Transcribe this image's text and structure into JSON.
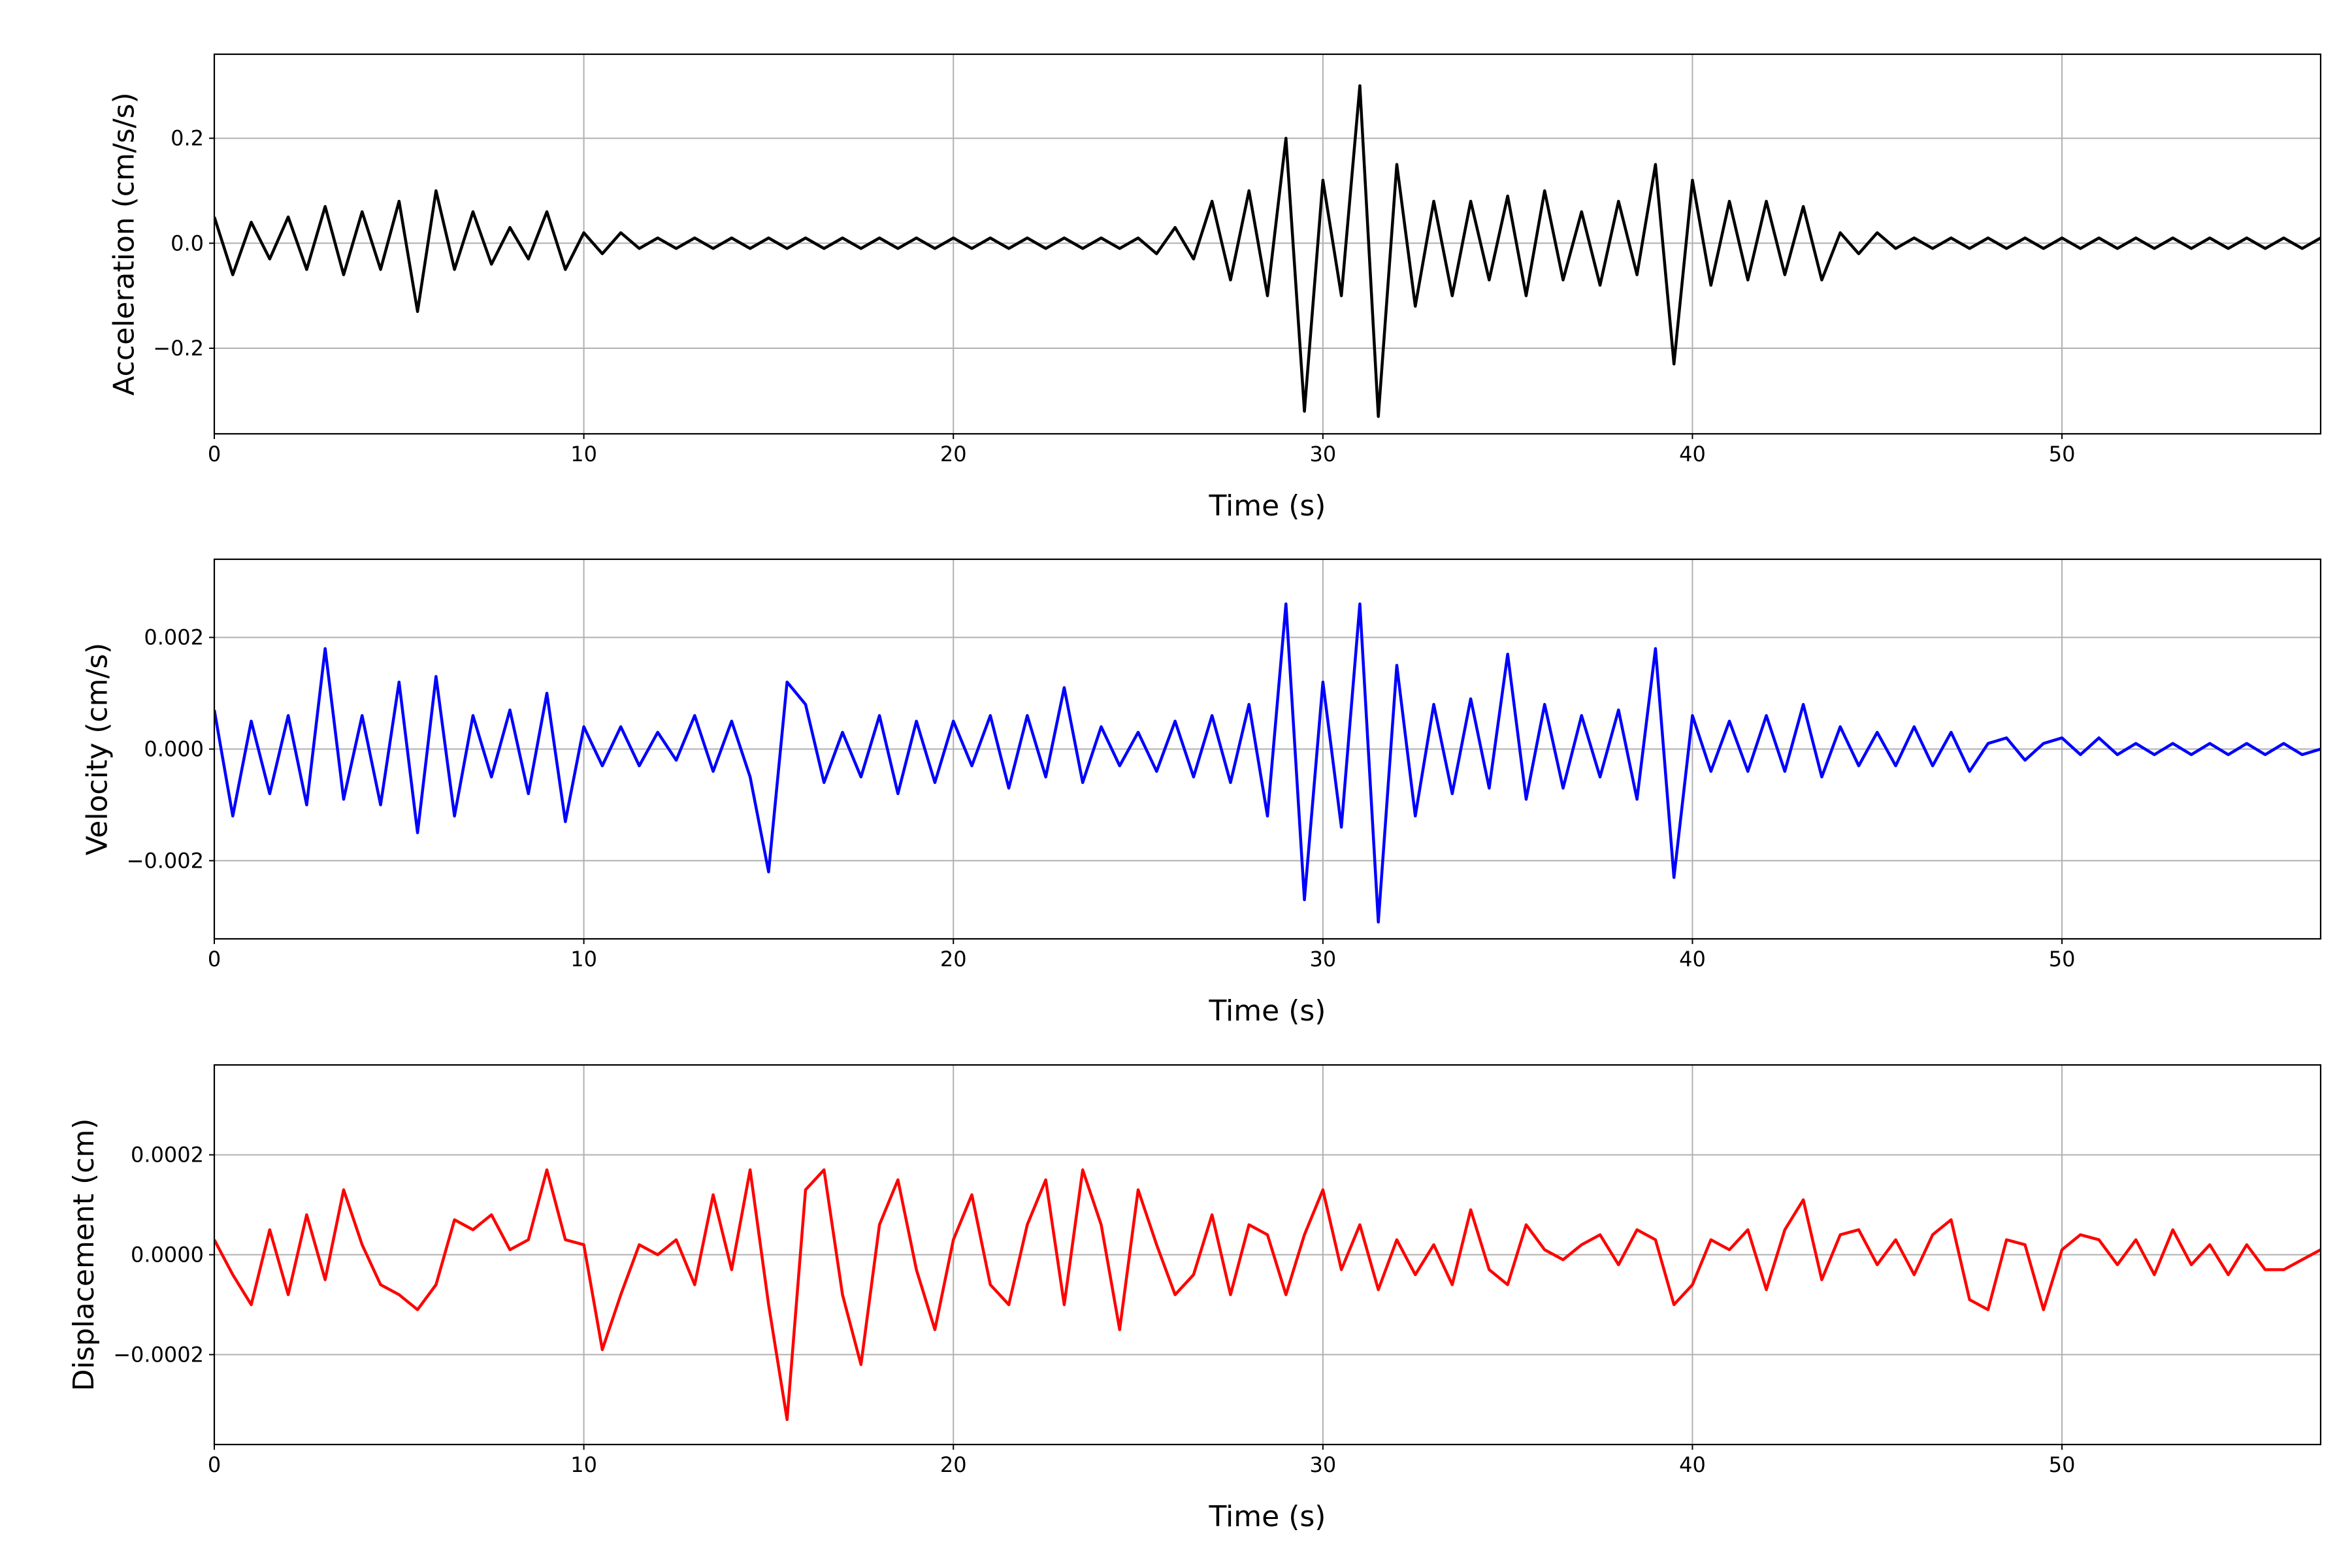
{
  "chart_data": [
    {
      "type": "line",
      "xlabel": "Time (s)",
      "ylabel": "Acceleration (cm/s/s)",
      "color": "#000000",
      "xlim": [
        0,
        57.0
      ],
      "xticks": [
        0,
        10,
        20,
        30,
        40,
        50
      ],
      "ylim": [
        -0.363,
        0.36
      ],
      "yticks": [
        {
          "value": -0.2,
          "label": "−0.2"
        },
        {
          "value": 0,
          "label": "0.0"
        },
        0.2
      ],
      "grid": true,
      "x": [
        0,
        0.5,
        1,
        1.5,
        2,
        2.5,
        3,
        3.5,
        4,
        4.5,
        5,
        5.5,
        6,
        6.5,
        7,
        7.5,
        8,
        8.5,
        9,
        9.5,
        10,
        10.5,
        11,
        11.5,
        12,
        12.5,
        13,
        13.5,
        14,
        14.5,
        15,
        15.5,
        16,
        16.5,
        17,
        17.5,
        18,
        18.5,
        19,
        19.5,
        20,
        20.5,
        21,
        21.5,
        22,
        22.5,
        23,
        23.5,
        24,
        24.5,
        25,
        25.5,
        26,
        26.5,
        27,
        27.5,
        28,
        28.5,
        29,
        29.5,
        30,
        30.5,
        31,
        31.5,
        32,
        32.5,
        33,
        33.5,
        34,
        34.5,
        35,
        35.5,
        36,
        36.5,
        37,
        37.5,
        38,
        38.5,
        39,
        39.5,
        40,
        40.5,
        41,
        41.5,
        42,
        42.5,
        43,
        43.5,
        44,
        44.5,
        45,
        45.5,
        46,
        46.5,
        47,
        47.5,
        48,
        48.5,
        49,
        49.5,
        50,
        50.5,
        51,
        51.5,
        52,
        52.5,
        53,
        53.5,
        54,
        54.5,
        55,
        55.5,
        56,
        56.5,
        57
      ],
      "values": [
        0.05,
        -0.06,
        0.04,
        -0.03,
        0.05,
        -0.05,
        0.07,
        -0.06,
        0.06,
        -0.05,
        0.08,
        -0.13,
        0.1,
        -0.05,
        0.06,
        -0.04,
        0.03,
        -0.03,
        0.06,
        -0.05,
        0.02,
        -0.02,
        0.02,
        -0.01,
        0.01,
        -0.01,
        0.01,
        -0.01,
        0.01,
        -0.01,
        0.01,
        -0.01,
        0.01,
        -0.01,
        0.01,
        -0.01,
        0.01,
        -0.01,
        0.01,
        -0.01,
        0.01,
        -0.01,
        0.01,
        -0.01,
        0.01,
        -0.01,
        0.01,
        -0.01,
        0.01,
        -0.01,
        0.01,
        -0.02,
        0.03,
        -0.03,
        0.08,
        -0.07,
        0.1,
        -0.1,
        0.2,
        -0.32,
        0.12,
        -0.1,
        0.3,
        -0.33,
        0.15,
        -0.12,
        0.08,
        -0.1,
        0.08,
        -0.07,
        0.09,
        -0.1,
        0.1,
        -0.07,
        0.06,
        -0.08,
        0.08,
        -0.06,
        0.15,
        -0.23,
        0.12,
        -0.08,
        0.08,
        -0.07,
        0.08,
        -0.06,
        0.07,
        -0.07,
        0.02,
        -0.02,
        0.02,
        -0.01,
        0.01,
        -0.01,
        0.01,
        -0.01,
        0.01,
        -0.01,
        0.01,
        -0.01,
        0.01,
        -0.01,
        0.01,
        -0.01,
        0.01,
        -0.01,
        0.01,
        -0.01,
        0.01,
        -0.01,
        0.01,
        -0.01,
        0.01,
        -0.01,
        0.01
      ]
    },
    {
      "type": "line",
      "xlabel": "Time (s)",
      "ylabel": "Velocity (cm/s)",
      "color": "#0000ff",
      "xlim": [
        0,
        57.0
      ],
      "xticks": [
        0,
        10,
        20,
        30,
        40,
        50
      ],
      "ylim": [
        -0.0034,
        0.0034
      ],
      "yticks": [
        {
          "value": -0.002,
          "label": "−0.002"
        },
        {
          "value": 0,
          "label": "0.000"
        },
        0.002
      ],
      "grid": true,
      "x": [
        0,
        0.5,
        1,
        1.5,
        2,
        2.5,
        3,
        3.5,
        4,
        4.5,
        5,
        5.5,
        6,
        6.5,
        7,
        7.5,
        8,
        8.5,
        9,
        9.5,
        10,
        10.5,
        11,
        11.5,
        12,
        12.5,
        13,
        13.5,
        14,
        14.5,
        15,
        15.5,
        16,
        16.5,
        17,
        17.5,
        18,
        18.5,
        19,
        19.5,
        20,
        20.5,
        21,
        21.5,
        22,
        22.5,
        23,
        23.5,
        24,
        24.5,
        25,
        25.5,
        26,
        26.5,
        27,
        27.5,
        28,
        28.5,
        29,
        29.5,
        30,
        30.5,
        31,
        31.5,
        32,
        32.5,
        33,
        33.5,
        34,
        34.5,
        35,
        35.5,
        36,
        36.5,
        37,
        37.5,
        38,
        38.5,
        39,
        39.5,
        40,
        40.5,
        41,
        41.5,
        42,
        42.5,
        43,
        43.5,
        44,
        44.5,
        45,
        45.5,
        46,
        46.5,
        47,
        47.5,
        48,
        48.5,
        49,
        49.5,
        50,
        50.5,
        51,
        51.5,
        52,
        52.5,
        53,
        53.5,
        54,
        54.5,
        55,
        55.5,
        56,
        56.5,
        57
      ],
      "values": [
        0.0007,
        -0.0012,
        0.0005,
        -0.0008,
        0.0006,
        -0.001,
        0.0018,
        -0.0009,
        0.0006,
        -0.001,
        0.0012,
        -0.0015,
        0.0013,
        -0.0012,
        0.0006,
        -0.0005,
        0.0007,
        -0.0008,
        0.001,
        -0.0013,
        0.0004,
        -0.0003,
        0.0004,
        -0.0003,
        0.0003,
        -0.0002,
        0.0006,
        -0.0004,
        0.0005,
        -0.0005,
        -0.0022,
        0.0012,
        0.0008,
        -0.0006,
        0.0003,
        -0.0005,
        0.0006,
        -0.0008,
        0.0005,
        -0.0006,
        0.0005,
        -0.0003,
        0.0006,
        -0.0007,
        0.0006,
        -0.0005,
        0.0011,
        -0.0006,
        0.0004,
        -0.0003,
        0.0003,
        -0.0004,
        0.0005,
        -0.0005,
        0.0006,
        -0.0006,
        0.0008,
        -0.0012,
        0.0026,
        -0.0027,
        0.0012,
        -0.0014,
        0.0026,
        -0.0031,
        0.0015,
        -0.0012,
        0.0008,
        -0.0008,
        0.0009,
        -0.0007,
        0.0017,
        -0.0009,
        0.0008,
        -0.0007,
        0.0006,
        -0.0005,
        0.0007,
        -0.0009,
        0.0018,
        -0.0023,
        0.0006,
        -0.0004,
        0.0005,
        -0.0004,
        0.0006,
        -0.0004,
        0.0008,
        -0.0005,
        0.0004,
        -0.0003,
        0.0003,
        -0.0003,
        0.0004,
        -0.0003,
        0.0003,
        -0.0004,
        0.0001,
        0.0002,
        -0.0002,
        0.0001,
        0.0002,
        -0.0001,
        0.0002,
        -0.0001,
        0.0001,
        -0.0001,
        0.0001,
        -0.0001,
        0.0001,
        -0.0001,
        0.0001,
        -0.0001,
        0.0001,
        -0.0001,
        0
      ]
    },
    {
      "type": "line",
      "xlabel": "Time (s)",
      "ylabel": "Displacement (cm)",
      "color": "#ff0000",
      "xlim": [
        0,
        57.0
      ],
      "xticks": [
        0,
        10,
        20,
        30,
        40,
        50
      ],
      "ylim": [
        -0.00038,
        0.00038
      ],
      "yticks": [
        {
          "value": -0.0002,
          "label": "−0.0002"
        },
        {
          "value": 0,
          "label": "0.0000"
        },
        0.0002
      ],
      "grid": true,
      "x": [
        0,
        0.5,
        1,
        1.5,
        2,
        2.5,
        3,
        3.5,
        4,
        4.5,
        5,
        5.5,
        6,
        6.5,
        7,
        7.5,
        8,
        8.5,
        9,
        9.5,
        10,
        10.5,
        11,
        11.5,
        12,
        12.5,
        13,
        13.5,
        14,
        14.5,
        15,
        15.5,
        16,
        16.5,
        17,
        17.5,
        18,
        18.5,
        19,
        19.5,
        20,
        20.5,
        21,
        21.5,
        22,
        22.5,
        23,
        23.5,
        24,
        24.5,
        25,
        25.5,
        26,
        26.5,
        27,
        27.5,
        28,
        28.5,
        29,
        29.5,
        30,
        30.5,
        31,
        31.5,
        32,
        32.5,
        33,
        33.5,
        34,
        34.5,
        35,
        35.5,
        36,
        36.5,
        37,
        37.5,
        38,
        38.5,
        39,
        39.5,
        40,
        40.5,
        41,
        41.5,
        42,
        42.5,
        43,
        43.5,
        44,
        44.5,
        45,
        45.5,
        46,
        46.5,
        47,
        47.5,
        48,
        48.5,
        49,
        49.5,
        50,
        50.5,
        51,
        51.5,
        52,
        52.5,
        53,
        53.5,
        54,
        54.5,
        55,
        55.5,
        56,
        56.5,
        57
      ],
      "values": [
        3e-05,
        -4e-05,
        -0.0001,
        5e-05,
        -8e-05,
        8e-05,
        -5e-05,
        0.00013,
        2e-05,
        -6e-05,
        -8e-05,
        -0.00011,
        -6e-05,
        7e-05,
        5e-05,
        8e-05,
        1e-05,
        3e-05,
        0.00017,
        3e-05,
        2e-05,
        -0.00019,
        -8e-05,
        2e-05,
        0,
        3e-05,
        -6e-05,
        0.00012,
        -3e-05,
        0.00017,
        -0.0001,
        -0.00033,
        0.00013,
        0.00017,
        -8e-05,
        -0.00022,
        6e-05,
        0.00015,
        -3e-05,
        -0.00015,
        3e-05,
        0.00012,
        -6e-05,
        -0.0001,
        6e-05,
        0.00015,
        -0.0001,
        0.00017,
        6e-05,
        -0.00015,
        0.00013,
        2e-05,
        -8e-05,
        -4e-05,
        8e-05,
        -8e-05,
        6e-05,
        4e-05,
        -8e-05,
        4e-05,
        0.00013,
        -3e-05,
        6e-05,
        -7e-05,
        3e-05,
        -4e-05,
        2e-05,
        -6e-05,
        9e-05,
        -3e-05,
        -6e-05,
        6e-05,
        1e-05,
        -1e-05,
        2e-05,
        4e-05,
        -2e-05,
        5e-05,
        3e-05,
        -0.0001,
        -6e-05,
        3e-05,
        1e-05,
        5e-05,
        -7e-05,
        5e-05,
        0.00011,
        -5e-05,
        4e-05,
        5e-05,
        -2e-05,
        3e-05,
        -4e-05,
        4e-05,
        7e-05,
        -9e-05,
        -0.00011,
        3e-05,
        2e-05,
        -0.00011,
        1e-05,
        4e-05,
        3e-05,
        -2e-05,
        3e-05,
        -4e-05,
        5e-05,
        -2e-05,
        2e-05,
        -4e-05,
        2e-05,
        -3e-05,
        -3e-05,
        -1e-05,
        1e-05
      ]
    }
  ]
}
